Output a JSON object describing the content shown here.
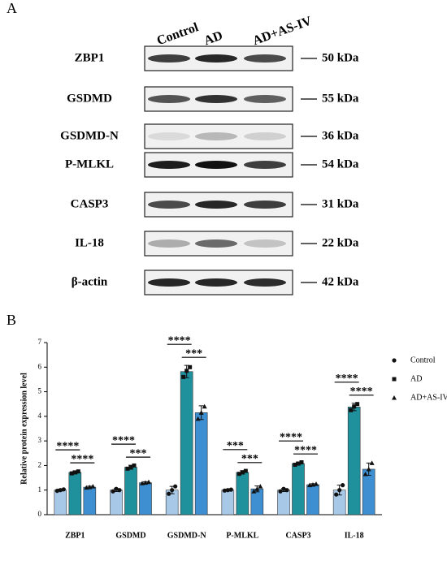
{
  "panel_a": {
    "label": "A",
    "lanes": [
      "Control",
      "AD",
      "AD+AS-IV"
    ],
    "rows": [
      {
        "protein": "ZBP1",
        "size": "50 kDa"
      },
      {
        "protein": "GSDMD",
        "size": "55 kDa"
      },
      {
        "protein": "GSDMD-N",
        "size": "36 kDa"
      },
      {
        "protein": "P-MLKL",
        "size": "54 kDa"
      },
      {
        "protein": "CASP3",
        "size": "31 kDa"
      },
      {
        "protein": "IL-18",
        "size": "22 kDa"
      },
      {
        "protein": "β-actin",
        "size": "42 kDa"
      }
    ]
  },
  "chart_data": {
    "type": "bar",
    "label": "B",
    "y_label": "Relative protein expression level",
    "categories": [
      "ZBP1",
      "GSDMD",
      "GSDMD-N",
      "P-MLKL",
      "CASP3",
      "IL-18"
    ],
    "series": [
      {
        "name": "Control",
        "color": "#a8c8e8",
        "marker": "circle",
        "values": [
          1.0,
          1.0,
          1.0,
          1.0,
          1.0,
          1.0
        ],
        "errors": [
          0.04,
          0.06,
          0.15,
          0.04,
          0.06,
          0.2
        ],
        "points": [
          [
            0.97,
            1.0,
            1.03
          ],
          [
            0.95,
            1.05,
            1.0
          ],
          [
            0.85,
            1.0,
            1.15
          ],
          [
            0.98,
            1.0,
            1.02
          ],
          [
            0.95,
            1.05,
            1.0
          ],
          [
            0.82,
            1.0,
            1.2
          ]
        ]
      },
      {
        "name": "AD",
        "color": "#1f919c",
        "marker": "square",
        "values": [
          1.72,
          1.93,
          5.82,
          1.72,
          2.08,
          4.38
        ],
        "errors": [
          0.06,
          0.08,
          0.25,
          0.07,
          0.06,
          0.15
        ],
        "points": [
          [
            1.68,
            1.72,
            1.76
          ],
          [
            1.87,
            1.93,
            2.0
          ],
          [
            5.6,
            5.85,
            6.0
          ],
          [
            1.66,
            1.72,
            1.78
          ],
          [
            2.03,
            2.08,
            2.13
          ],
          [
            4.25,
            4.4,
            4.5
          ]
        ]
      },
      {
        "name": "AD+AS-IV",
        "color": "#3d8fd1",
        "marker": "triangle",
        "values": [
          1.12,
          1.3,
          4.15,
          1.05,
          1.22,
          1.85
        ],
        "errors": [
          0.04,
          0.04,
          0.28,
          0.12,
          0.04,
          0.25
        ],
        "points": [
          [
            1.1,
            1.12,
            1.15
          ],
          [
            1.28,
            1.3,
            1.33
          ],
          [
            3.9,
            4.15,
            4.4
          ],
          [
            0.95,
            1.05,
            1.15
          ],
          [
            1.2,
            1.22,
            1.25
          ],
          [
            1.65,
            1.85,
            2.1
          ]
        ]
      }
    ],
    "significance": [
      [
        "****",
        "****"
      ],
      [
        "****",
        "***"
      ],
      [
        "****",
        "***"
      ],
      [
        "***",
        "***"
      ],
      [
        "****",
        "****"
      ],
      [
        "****",
        "****"
      ]
    ],
    "ylim": [
      0,
      7
    ],
    "yticks": [
      0,
      1,
      2,
      3,
      4,
      5,
      6,
      7
    ]
  }
}
